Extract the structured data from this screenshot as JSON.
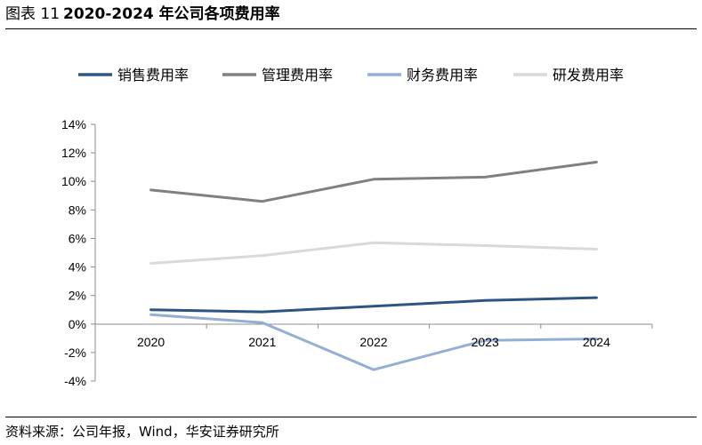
{
  "header": {
    "figure_label": "图表 11",
    "title": "2020-2024 年公司各项费用率"
  },
  "footer": {
    "source": "资料来源：公司年报，Wind，华安证券研究所"
  },
  "chart_data": {
    "type": "line",
    "title": "2020-2024 年公司各项费用率",
    "xlabel": "",
    "ylabel": "",
    "categories": [
      "2020",
      "2021",
      "2022",
      "2023",
      "2024"
    ],
    "ylim": [
      -4,
      14
    ],
    "yticks": [
      -4,
      -2,
      0,
      2,
      4,
      6,
      8,
      10,
      12,
      14
    ],
    "ytick_labels": [
      "-4%",
      "-2%",
      "0%",
      "2%",
      "4%",
      "6%",
      "8%",
      "10%",
      "12%",
      "14%"
    ],
    "grid": false,
    "legend_position": "top",
    "series": [
      {
        "name": "销售费用率",
        "color": "#2e5484",
        "values": [
          1.0,
          0.85,
          1.25,
          1.65,
          1.85
        ]
      },
      {
        "name": "管理费用率",
        "color": "#808080",
        "values": [
          9.4,
          8.6,
          10.15,
          10.3,
          11.35
        ]
      },
      {
        "name": "财务费用率",
        "color": "#94afd4",
        "values": [
          0.65,
          0.1,
          -3.2,
          -1.15,
          -1.05
        ]
      },
      {
        "name": "研发费用率",
        "color": "#d9d9d9",
        "values": [
          4.25,
          4.8,
          5.7,
          5.5,
          5.25
        ]
      }
    ]
  }
}
